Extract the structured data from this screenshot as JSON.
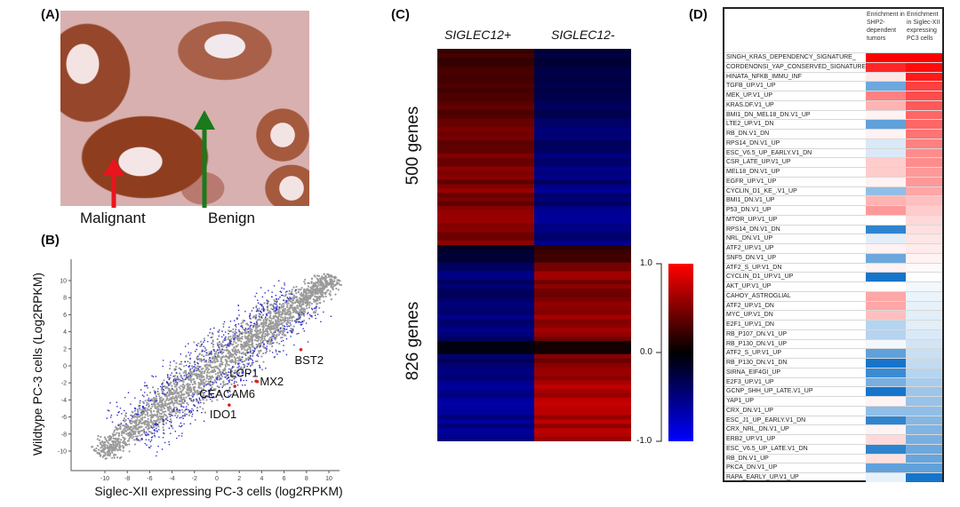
{
  "panels": {
    "a": {
      "label": "(A)",
      "malignant": "Malignant",
      "benign": "Benign",
      "arrow_colors": {
        "malignant": "#e8141e",
        "benign": "#1a7a1a"
      }
    },
    "b": {
      "label": "(B)"
    },
    "c": {
      "label": "(C)"
    },
    "d": {
      "label": "(D)"
    }
  },
  "chart_data": [
    {
      "type": "scatter",
      "xlabel": "Siglec-XII expressing PC-3 cells (log2RPKM)",
      "ylabel": "Wildtype PC-3 cells (Log2RPKM)",
      "xlim": [
        -12,
        11
      ],
      "ylim": [
        -12,
        12
      ],
      "xticks": [
        "-10",
        "-8",
        "-6",
        "-4",
        "-2",
        "0",
        "2",
        "4",
        "6",
        "8",
        "10"
      ],
      "yticks": [
        "10",
        "8",
        "6",
        "4",
        "2",
        "0",
        "-2",
        "-4",
        "-6",
        "-8",
        "-10"
      ],
      "point_colors": {
        "background": "#9a9a9a",
        "differential": "#2a2ad0",
        "highlight": "#e02020"
      },
      "highlighted": [
        {
          "name": "BST2",
          "x": 7.5,
          "y": 1.9
        },
        {
          "name": "LCP1",
          "x": 3.5,
          "y": -1.8
        },
        {
          "name": "MX2",
          "x": 3.6,
          "y": -1.85
        },
        {
          "name": "CEACAM6",
          "x": 1.6,
          "y": -2.4
        },
        {
          "name": "IDO1",
          "x": 1.1,
          "y": -4.6
        }
      ]
    },
    {
      "type": "heatmap",
      "columns": [
        "SIGLEC12+",
        "SIGLEC12-"
      ],
      "clusters": [
        {
          "label": "500 genes",
          "values": [
            0.55,
            -0.55
          ]
        },
        {
          "label": "826 genes",
          "values": [
            -0.5,
            0.6
          ]
        }
      ],
      "colorbar": {
        "ticks": [
          "1.0",
          "0.0",
          "-1.0"
        ],
        "range": [
          -1,
          1
        ],
        "colors": [
          "#0000ff",
          "#000000",
          "#ff0000"
        ]
      }
    },
    {
      "type": "table",
      "columns": [
        "Enrichment in SHP2-dependent tumors",
        "Enrichment in Siglec-XII expressing PC3 cells"
      ],
      "colors": {
        "positive": "#ff0000",
        "negative": "#0a6ec8",
        "neutral": "#ffffff"
      },
      "rows": [
        {
          "name": "SINGH_KRAS_DEPENDENCY_SIGNATURE_",
          "v": [
            1.0,
            1.0
          ]
        },
        {
          "name": "CORDENONSI_YAP_CONSERVED_SIGNATURE",
          "v": [
            0.85,
            0.95
          ]
        },
        {
          "name": "HINATA_NFKB_IMMU_INF",
          "v": [
            0.1,
            0.9
          ]
        },
        {
          "name": "TGFB_UP.V1_UP",
          "v": [
            -0.6,
            0.75
          ]
        },
        {
          "name": "MEK_UP.V1_UP",
          "v": [
            0.5,
            0.7
          ]
        },
        {
          "name": "KRAS.DF.V1_UP",
          "v": [
            0.3,
            0.65
          ]
        },
        {
          "name": "BMI1_DN_MEL18_DN.V1_UP",
          "v": [
            0.05,
            0.6
          ]
        },
        {
          "name": "LTE2_UP.V1_DN",
          "v": [
            -0.65,
            0.6
          ]
        },
        {
          "name": "RB_DN.V1_DN",
          "v": [
            0.05,
            0.55
          ]
        },
        {
          "name": "RPS14_DN.V1_UP",
          "v": [
            -0.15,
            0.5
          ]
        },
        {
          "name": "ESC_V6.5_UP_EARLY.V1_DN",
          "v": [
            -0.15,
            0.45
          ]
        },
        {
          "name": "CSR_LATE_UP.V1_UP",
          "v": [
            0.2,
            0.45
          ]
        },
        {
          "name": "MEL18_DN.V1_UP",
          "v": [
            0.2,
            0.4
          ]
        },
        {
          "name": "EGFR_UP.V1_UP",
          "v": [
            0.05,
            0.4
          ]
        },
        {
          "name": "CYCLIN_D1_KE_.V1_UP",
          "v": [
            -0.45,
            0.35
          ]
        },
        {
          "name": "BMI1_DN.V1_UP",
          "v": [
            0.3,
            0.25
          ]
        },
        {
          "name": "P53_DN.V1_UP",
          "v": [
            0.4,
            0.2
          ]
        },
        {
          "name": "MTOR_UP.V1_UP",
          "v": [
            0,
            0.15
          ]
        },
        {
          "name": "RPS14_DN.V1_DN",
          "v": [
            -0.85,
            0.12
          ]
        },
        {
          "name": "NRL_DN.V1_UP",
          "v": [
            -0.12,
            0.1
          ]
        },
        {
          "name": "ATF2_UP.V1_UP",
          "v": [
            0.05,
            0.08
          ]
        },
        {
          "name": "SNF5_DN.V1_UP",
          "v": [
            -0.6,
            0.05
          ]
        },
        {
          "name": "ATF2_S_UP.V1_DN",
          "v": [
            0.05,
            0.02
          ]
        },
        {
          "name": "CYCLIN_D1_UP.V1_UP",
          "v": [
            -0.95,
            0
          ]
        },
        {
          "name": "AKT_UP.V1_UP",
          "v": [
            0,
            -0.05
          ]
        },
        {
          "name": "CAHOY_ASTROGLIAL",
          "v": [
            0.35,
            -0.08
          ]
        },
        {
          "name": "ATF2_UP.V1_DN",
          "v": [
            0.35,
            -0.1
          ]
        },
        {
          "name": "MYC_UP.V1_DN",
          "v": [
            0.25,
            -0.12
          ]
        },
        {
          "name": "E2F1_UP.V1_DN",
          "v": [
            -0.3,
            -0.12
          ]
        },
        {
          "name": "RB_P107_DN.V1_UP",
          "v": [
            -0.3,
            -0.15
          ]
        },
        {
          "name": "RB_P130_DN.V1_UP",
          "v": [
            -0.05,
            -0.18
          ]
        },
        {
          "name": "ATF2_S_UP.V1_UP",
          "v": [
            -0.65,
            -0.22
          ]
        },
        {
          "name": "RB_P130_DN.V1_DN",
          "v": [
            -0.95,
            -0.25
          ]
        },
        {
          "name": "SIRNA_EIF4GI_UP",
          "v": [
            -0.8,
            -0.3
          ]
        },
        {
          "name": "E2F3_UP.V1_UP",
          "v": [
            -0.55,
            -0.35
          ]
        },
        {
          "name": "GCNP_SHH_UP_LATE.V1_UP",
          "v": [
            -0.95,
            -0.4
          ]
        },
        {
          "name": "YAP1_UP",
          "v": [
            0.05,
            -0.42
          ]
        },
        {
          "name": "CRX_DN.V1_UP",
          "v": [
            -0.45,
            -0.45
          ]
        },
        {
          "name": "ESC_J1_UP_EARLY.V1_DN",
          "v": [
            -0.85,
            -0.5
          ]
        },
        {
          "name": "CRX_NRL_DN.V1_UP",
          "v": [
            0.05,
            -0.52
          ]
        },
        {
          "name": "ERB2_UP.V1_UP",
          "v": [
            0.15,
            -0.55
          ]
        },
        {
          "name": "ESC_V6.5_UP_LATE.V1_DN",
          "v": [
            -0.85,
            -0.6
          ]
        },
        {
          "name": "RB_DN.V1_UP",
          "v": [
            0.12,
            -0.62
          ]
        },
        {
          "name": "PKCA_DN.V1_UP",
          "v": [
            -0.65,
            -0.65
          ]
        },
        {
          "name": "RAPA_EARLY_UP.V1_UP",
          "v": [
            -0.1,
            -0.95
          ]
        }
      ]
    }
  ]
}
